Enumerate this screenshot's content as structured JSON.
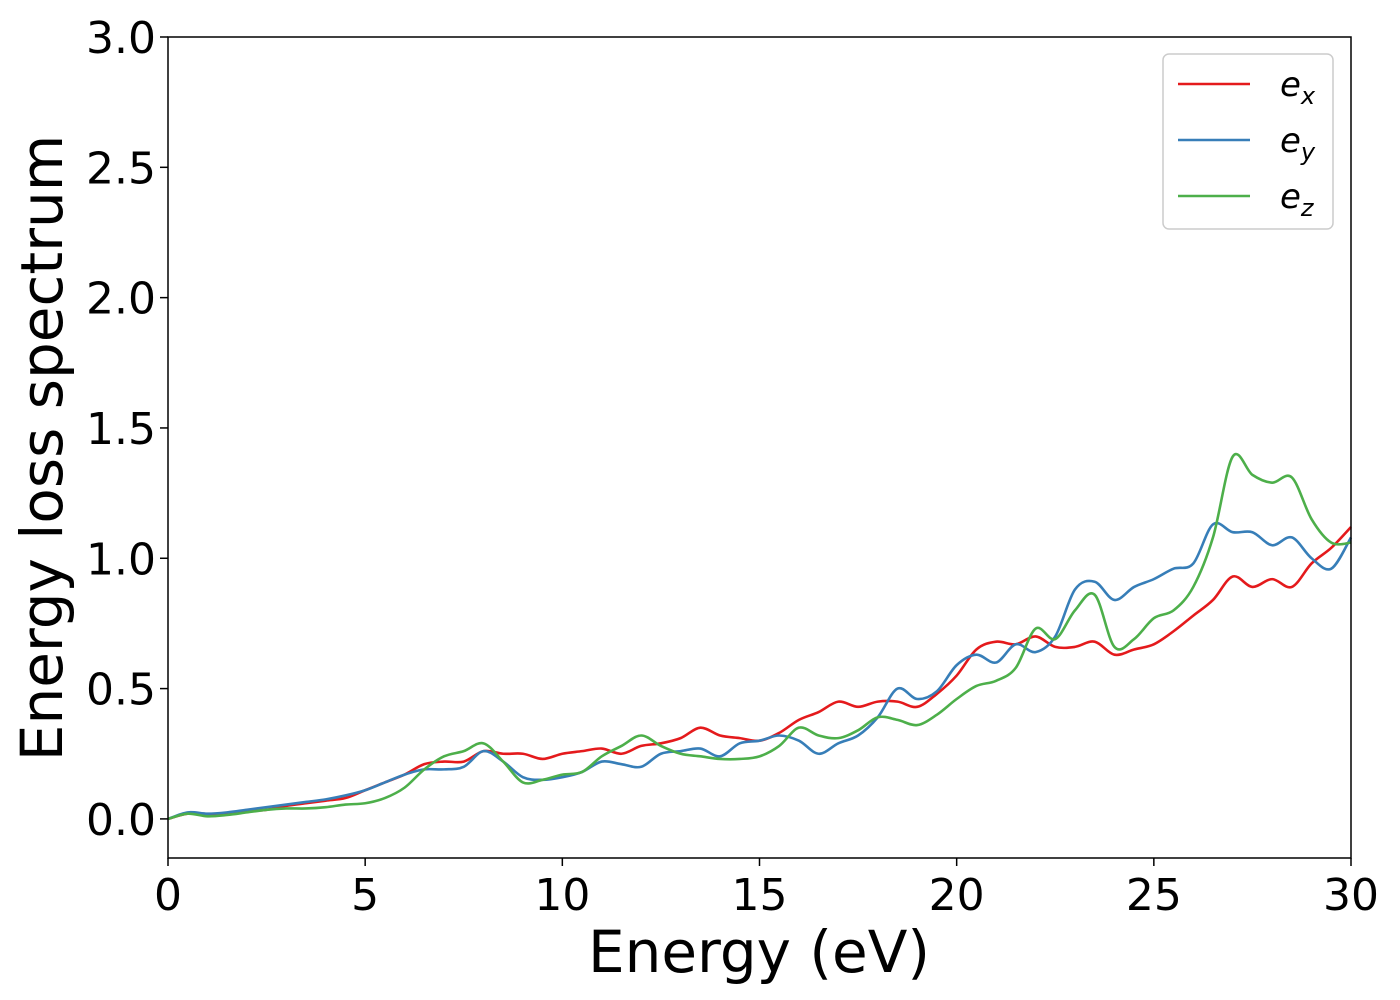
{
  "chart_data": {
    "type": "line",
    "title": "",
    "xlabel": "Energy (eV)",
    "ylabel": "Energy loss spectrum",
    "xlim": [
      0,
      30
    ],
    "ylim": [
      -0.15,
      3.0
    ],
    "xticks": [
      0,
      5,
      10,
      15,
      20,
      25,
      30
    ],
    "xtick_labels": [
      "0",
      "5",
      "10",
      "15",
      "20",
      "25",
      "30"
    ],
    "yticks": [
      0.0,
      0.5,
      1.0,
      1.5,
      2.0,
      2.5,
      3.0
    ],
    "ytick_labels": [
      "0.0",
      "0.5",
      "1.0",
      "1.5",
      "2.0",
      "2.5",
      "3.0"
    ],
    "grid": false,
    "legend_position": "top-right",
    "series": [
      {
        "name": "e_x",
        "legend_base": "e",
        "legend_sub": "x",
        "color": "#e41a1c",
        "x": [
          0,
          0.5,
          1,
          1.5,
          2,
          2.5,
          3,
          3.5,
          4,
          4.5,
          5,
          5.5,
          6,
          6.5,
          7,
          7.5,
          8,
          8.5,
          9,
          9.5,
          10,
          10.5,
          11,
          11.5,
          12,
          12.5,
          13,
          13.5,
          14,
          14.5,
          15,
          15.5,
          16,
          16.5,
          17,
          17.5,
          18,
          18.5,
          19,
          19.5,
          20,
          20.5,
          21,
          21.5,
          22,
          22.5,
          23,
          23.5,
          24,
          24.5,
          25,
          25.5,
          26,
          26.5,
          27,
          27.5,
          28,
          28.5,
          29,
          29.5,
          30
        ],
        "y": [
          0.0,
          0.02,
          0.015,
          0.02,
          0.03,
          0.035,
          0.05,
          0.06,
          0.07,
          0.08,
          0.11,
          0.14,
          0.17,
          0.21,
          0.22,
          0.22,
          0.26,
          0.25,
          0.25,
          0.23,
          0.25,
          0.26,
          0.27,
          0.25,
          0.28,
          0.29,
          0.31,
          0.35,
          0.32,
          0.31,
          0.3,
          0.33,
          0.38,
          0.41,
          0.45,
          0.43,
          0.45,
          0.45,
          0.43,
          0.48,
          0.55,
          0.65,
          0.68,
          0.67,
          0.7,
          0.66,
          0.66,
          0.68,
          0.63,
          0.65,
          0.67,
          0.72,
          0.78,
          0.84,
          0.93,
          0.89,
          0.92,
          0.89,
          0.98,
          1.04,
          1.12
        ]
      },
      {
        "name": "e_y",
        "legend_base": "e",
        "legend_sub": "y",
        "color": "#377eb8",
        "x": [
          0,
          0.5,
          1,
          1.5,
          2,
          2.5,
          3,
          3.5,
          4,
          4.5,
          5,
          5.5,
          6,
          6.5,
          7,
          7.5,
          8,
          8.5,
          9,
          9.5,
          10,
          10.5,
          11,
          11.5,
          12,
          12.5,
          13,
          13.5,
          14,
          14.5,
          15,
          15.5,
          16,
          16.5,
          17,
          17.5,
          18,
          18.5,
          19,
          19.5,
          20,
          20.5,
          21,
          21.5,
          22,
          22.5,
          23,
          23.5,
          24,
          24.5,
          25,
          25.5,
          26,
          26.5,
          27,
          27.5,
          28,
          28.5,
          29,
          29.5,
          30
        ],
        "y": [
          0.0,
          0.025,
          0.02,
          0.025,
          0.035,
          0.045,
          0.055,
          0.065,
          0.075,
          0.09,
          0.11,
          0.14,
          0.17,
          0.19,
          0.19,
          0.2,
          0.26,
          0.22,
          0.16,
          0.15,
          0.16,
          0.18,
          0.22,
          0.21,
          0.2,
          0.25,
          0.26,
          0.27,
          0.24,
          0.29,
          0.3,
          0.32,
          0.3,
          0.25,
          0.29,
          0.32,
          0.39,
          0.5,
          0.46,
          0.49,
          0.59,
          0.63,
          0.6,
          0.67,
          0.64,
          0.7,
          0.88,
          0.91,
          0.84,
          0.89,
          0.92,
          0.96,
          0.98,
          1.13,
          1.1,
          1.1,
          1.05,
          1.08,
          1.0,
          0.96,
          1.08
        ]
      },
      {
        "name": "e_z",
        "legend_base": "e",
        "legend_sub": "z",
        "color": "#4daf4a",
        "x": [
          0,
          0.5,
          1,
          1.5,
          2,
          2.5,
          3,
          3.5,
          4,
          4.5,
          5,
          5.5,
          6,
          6.5,
          7,
          7.5,
          8,
          8.5,
          9,
          9.5,
          10,
          10.5,
          11,
          11.5,
          12,
          12.5,
          13,
          13.5,
          14,
          14.5,
          15,
          15.5,
          16,
          16.5,
          17,
          17.5,
          18,
          18.5,
          19,
          19.5,
          20,
          20.5,
          21,
          21.5,
          22,
          22.5,
          23,
          23.5,
          24,
          24.5,
          25,
          25.5,
          26,
          26.5,
          27,
          27.5,
          28,
          28.5,
          29,
          29.5,
          30
        ],
        "y": [
          0.0,
          0.02,
          0.01,
          0.015,
          0.025,
          0.035,
          0.04,
          0.04,
          0.045,
          0.055,
          0.06,
          0.08,
          0.12,
          0.19,
          0.24,
          0.26,
          0.29,
          0.22,
          0.14,
          0.15,
          0.17,
          0.18,
          0.24,
          0.28,
          0.32,
          0.28,
          0.25,
          0.24,
          0.23,
          0.23,
          0.24,
          0.28,
          0.35,
          0.32,
          0.31,
          0.34,
          0.39,
          0.38,
          0.36,
          0.4,
          0.46,
          0.51,
          0.53,
          0.58,
          0.73,
          0.69,
          0.8,
          0.86,
          0.66,
          0.69,
          0.77,
          0.8,
          0.89,
          1.08,
          1.39,
          1.32,
          1.29,
          1.31,
          1.15,
          1.06,
          1.06
        ]
      }
    ]
  }
}
